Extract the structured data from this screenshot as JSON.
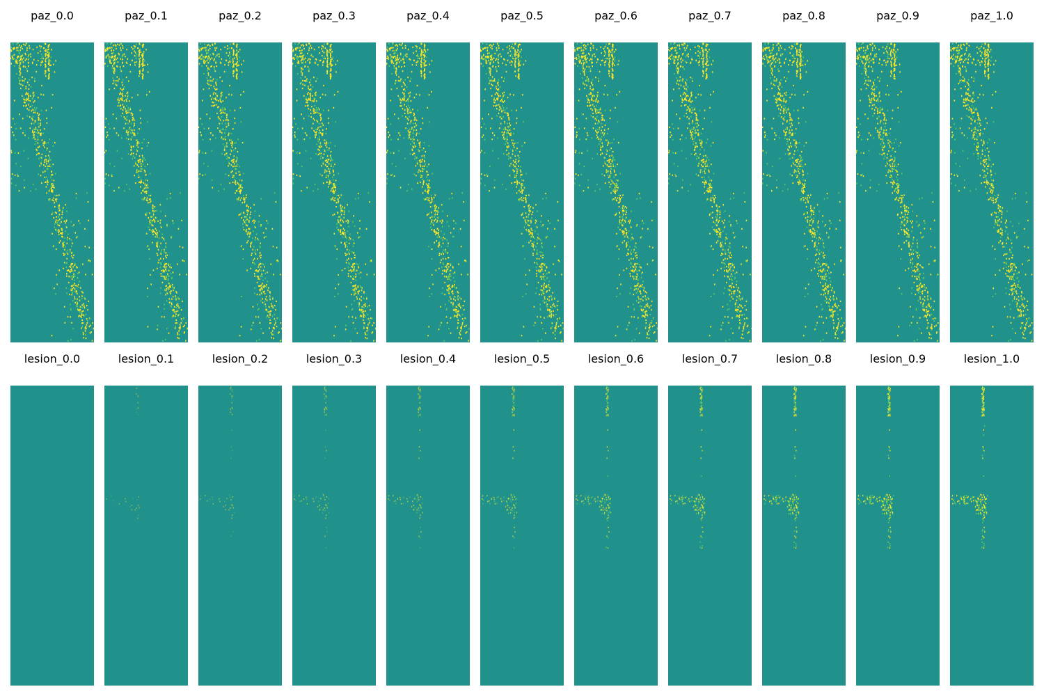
{
  "chart_data": {
    "type": "heatmap",
    "colormap": "viridis",
    "background_color": "#21918c",
    "highlight_color": "#fde725",
    "mid_color": "#5ec962",
    "axes_visible": false,
    "rows": [
      {
        "name": "paz",
        "titles": [
          "paz_0.0",
          "paz_0.1",
          "paz_0.2",
          "paz_0.3",
          "paz_0.4",
          "paz_0.5",
          "paz_0.6",
          "paz_0.7",
          "paz_0.8",
          "paz_0.9",
          "paz_1.0"
        ],
        "pattern": "diagonal band of sparse high-value pixels from top-left to bottom-right with rectangular blocks of activations"
      },
      {
        "name": "lesion",
        "titles": [
          "lesion_0.0",
          "lesion_0.1",
          "lesion_0.2",
          "lesion_0.3",
          "lesion_0.4",
          "lesion_0.5",
          "lesion_0.6",
          "lesion_0.7",
          "lesion_0.8",
          "lesion_0.9",
          "lesion_1.0"
        ],
        "pattern": "mostly uniform; sparse activations near one column and row, increasing in intensity with the suffix value",
        "intensity": [
          0.0,
          0.1,
          0.2,
          0.3,
          0.4,
          0.5,
          0.6,
          0.7,
          0.8,
          0.9,
          1.0
        ]
      }
    ]
  }
}
